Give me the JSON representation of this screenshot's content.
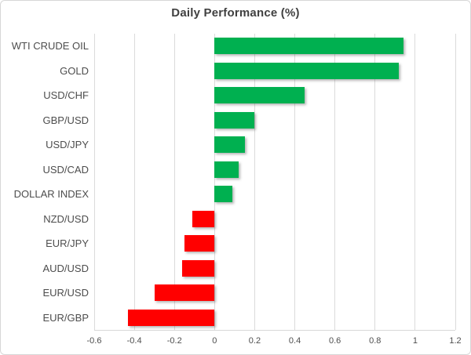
{
  "chart_data": {
    "type": "bar",
    "orientation": "horizontal",
    "title": "Daily Performance (%)",
    "categories": [
      "WTI CRUDE OIL",
      "GOLD",
      "USD/CHF",
      "GBP/USD",
      "USD/JPY",
      "USD/CAD",
      "DOLLAR INDEX",
      "NZD/USD",
      "EUR/JPY",
      "AUD/USD",
      "EUR/USD",
      "EUR/GBP"
    ],
    "values": [
      0.94,
      0.92,
      0.45,
      0.2,
      0.15,
      0.12,
      0.09,
      -0.11,
      -0.15,
      -0.16,
      -0.3,
      -0.43
    ],
    "xlim": [
      -0.6,
      1.2
    ],
    "x_tick_values": [
      -0.6,
      -0.4,
      -0.2,
      0,
      0.2,
      0.4,
      0.6,
      0.8,
      1,
      1.2
    ],
    "x_tick_labels": [
      "-0.6",
      "-0.4",
      "-0.2",
      "0",
      "0.2",
      "0.4",
      "0.6",
      "0.8",
      "1",
      "1.2"
    ],
    "grid": "vertical gridlines at every 0.2 step",
    "legend": false,
    "value_rule": "positive bars green, negative bars red",
    "colors": {
      "positive_bar": "#00B050",
      "negative_bar": "#FF0000",
      "gridline": "#DBDBDB",
      "axis_line": "#D9D9D9",
      "title_text": "#404040",
      "axis_text": "#4D4D4D",
      "chart_border": "#D7D7D7",
      "background": "#FFFFFF"
    }
  }
}
